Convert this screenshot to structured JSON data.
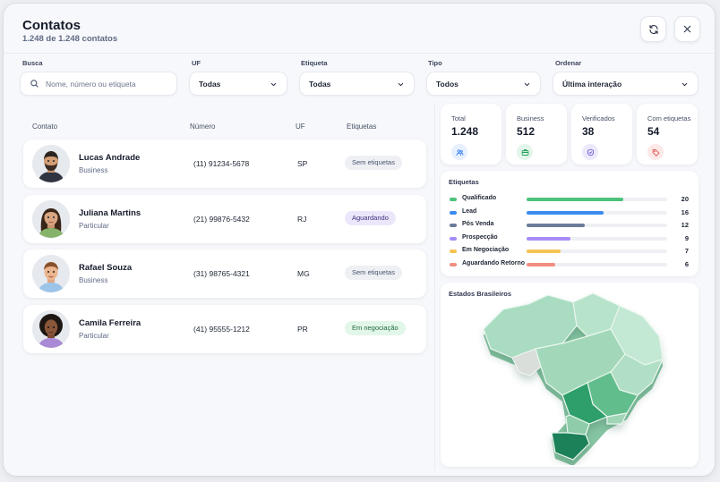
{
  "header": {
    "title": "Contatos",
    "subtitle": "1.248 de 1.248 contatos",
    "refresh_icon": "refresh-icon",
    "close_icon": "close-icon"
  },
  "filters": {
    "search": {
      "label": "Busca",
      "placeholder": "Nome, número ou etiqueta",
      "value": ""
    },
    "uf": {
      "label": "UF",
      "value": "Todas"
    },
    "etiqueta": {
      "label": "Etiqueta",
      "value": "Todas"
    },
    "tipo": {
      "label": "Tipo",
      "value": "Todos"
    },
    "ordenar": {
      "label": "Ordenar",
      "value": "Última interação"
    }
  },
  "table": {
    "columns": [
      "Contato",
      "Número",
      "UF",
      "Etiquetas"
    ],
    "rows": [
      {
        "name": "Lucas Andrade",
        "type": "Business",
        "number": "(11) 91234-5678",
        "uf": "SP",
        "tag": "Sem etiquetas",
        "tag_color": "#eef0f4",
        "tag_text_color": "#4a5570"
      },
      {
        "name": "Juliana Martins",
        "type": "Particular",
        "number": "(21) 99876-5432",
        "uf": "RJ",
        "tag": "Aguardando",
        "tag_color": "#ece6fb",
        "tag_text_color": "#3f2f7a"
      },
      {
        "name": "Rafael Souza",
        "type": "Business",
        "number": "(31) 98765-4321",
        "uf": "MG",
        "tag": "Sem etiquetas",
        "tag_color": "#eef0f4",
        "tag_text_color": "#4a5570"
      },
      {
        "name": "Camila Ferreira",
        "type": "Particular",
        "number": "(41) 95555-1212",
        "uf": "PR",
        "tag": "Em negociação",
        "tag_color": "#e3f6ea",
        "tag_text_color": "#1f6b3e"
      }
    ]
  },
  "stats": [
    {
      "label": "Total",
      "value": "1.248",
      "icon": "users-icon",
      "icon_color": "#3b82f6",
      "icon_bg": "#e7f0fe"
    },
    {
      "label": "Business",
      "value": "512",
      "icon": "briefcase-icon",
      "icon_color": "#22a45a",
      "icon_bg": "#e4f6eb"
    },
    {
      "label": "Verificados",
      "value": "38",
      "icon": "shield-check-icon",
      "icon_color": "#6b5bd6",
      "icon_bg": "#ece9fb"
    },
    {
      "label": "Com etiquetas",
      "value": "54",
      "icon": "tag-icon",
      "icon_color": "#e0605a",
      "icon_bg": "#fde9e8"
    }
  ],
  "etiquetas": {
    "title": "Etiquetas",
    "max": 20,
    "items": [
      {
        "label": "Qualificado",
        "count": 20,
        "color": "#4cc27a"
      },
      {
        "label": "Lead",
        "count": 16,
        "color": "#3b8cf0"
      },
      {
        "label": "Pós Venda",
        "count": 12,
        "color": "#6b7c9a"
      },
      {
        "label": "Prospecção",
        "count": 9,
        "color": "#a78bfa"
      },
      {
        "label": "Em Negociação",
        "count": 7,
        "color": "#f5c451"
      },
      {
        "label": "Aguardando Retorno",
        "count": 6,
        "color": "#f08f80"
      }
    ]
  },
  "map": {
    "title": "Estados Brasileiros",
    "base_color": "#a9dcc0",
    "highlight_colors": [
      "#2e9e6b",
      "#1b8058",
      "#62bd8d"
    ]
  }
}
